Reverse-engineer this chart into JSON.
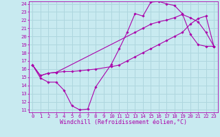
{
  "bg_color": "#c8eaf0",
  "grid_color": "#aed6de",
  "line_color": "#aa00aa",
  "marker_color": "#aa00aa",
  "xlabel": "Windchill (Refroidissement éolien,°C)",
  "xlim": [
    -0.5,
    23.5
  ],
  "ylim": [
    10.7,
    24.3
  ],
  "xticks": [
    0,
    1,
    2,
    3,
    4,
    5,
    6,
    7,
    8,
    9,
    10,
    11,
    12,
    13,
    14,
    15,
    16,
    17,
    18,
    19,
    20,
    21,
    22,
    23
  ],
  "yticks": [
    11,
    12,
    13,
    14,
    15,
    16,
    17,
    18,
    19,
    20,
    21,
    22,
    23,
    24
  ],
  "curve1_x": [
    0,
    1,
    2,
    3,
    4,
    5,
    6,
    7,
    8,
    10,
    11,
    12,
    13,
    14,
    15,
    16,
    17,
    18,
    19,
    20,
    21,
    22,
    23
  ],
  "curve1_y": [
    16.5,
    14.9,
    14.4,
    14.4,
    13.4,
    11.5,
    11.0,
    11.1,
    13.8,
    16.6,
    18.5,
    20.5,
    22.8,
    22.5,
    24.2,
    24.3,
    24.0,
    23.8,
    22.8,
    20.3,
    19.0,
    18.8,
    18.8
  ],
  "curve2_x": [
    0,
    1,
    2,
    3,
    4,
    5,
    6,
    7,
    8,
    10,
    11,
    12,
    13,
    14,
    15,
    16,
    17,
    18,
    19,
    20,
    21,
    22,
    23
  ],
  "curve2_y": [
    16.5,
    15.2,
    15.5,
    15.6,
    15.7,
    15.7,
    15.8,
    15.9,
    16.0,
    16.3,
    16.5,
    17.0,
    17.5,
    18.0,
    18.5,
    19.0,
    19.5,
    20.0,
    20.5,
    21.5,
    22.2,
    22.5,
    18.8
  ],
  "curve3_x": [
    0,
    1,
    2,
    3,
    13,
    14,
    15,
    16,
    17,
    18,
    19,
    20,
    21,
    22,
    23
  ],
  "curve3_y": [
    16.5,
    15.2,
    15.5,
    15.6,
    20.5,
    21.0,
    21.5,
    21.8,
    22.0,
    22.3,
    22.7,
    22.3,
    21.8,
    20.5,
    18.8
  ],
  "font_family": "monospace",
  "label_fontsize": 6.0,
  "tick_fontsize": 5.2
}
